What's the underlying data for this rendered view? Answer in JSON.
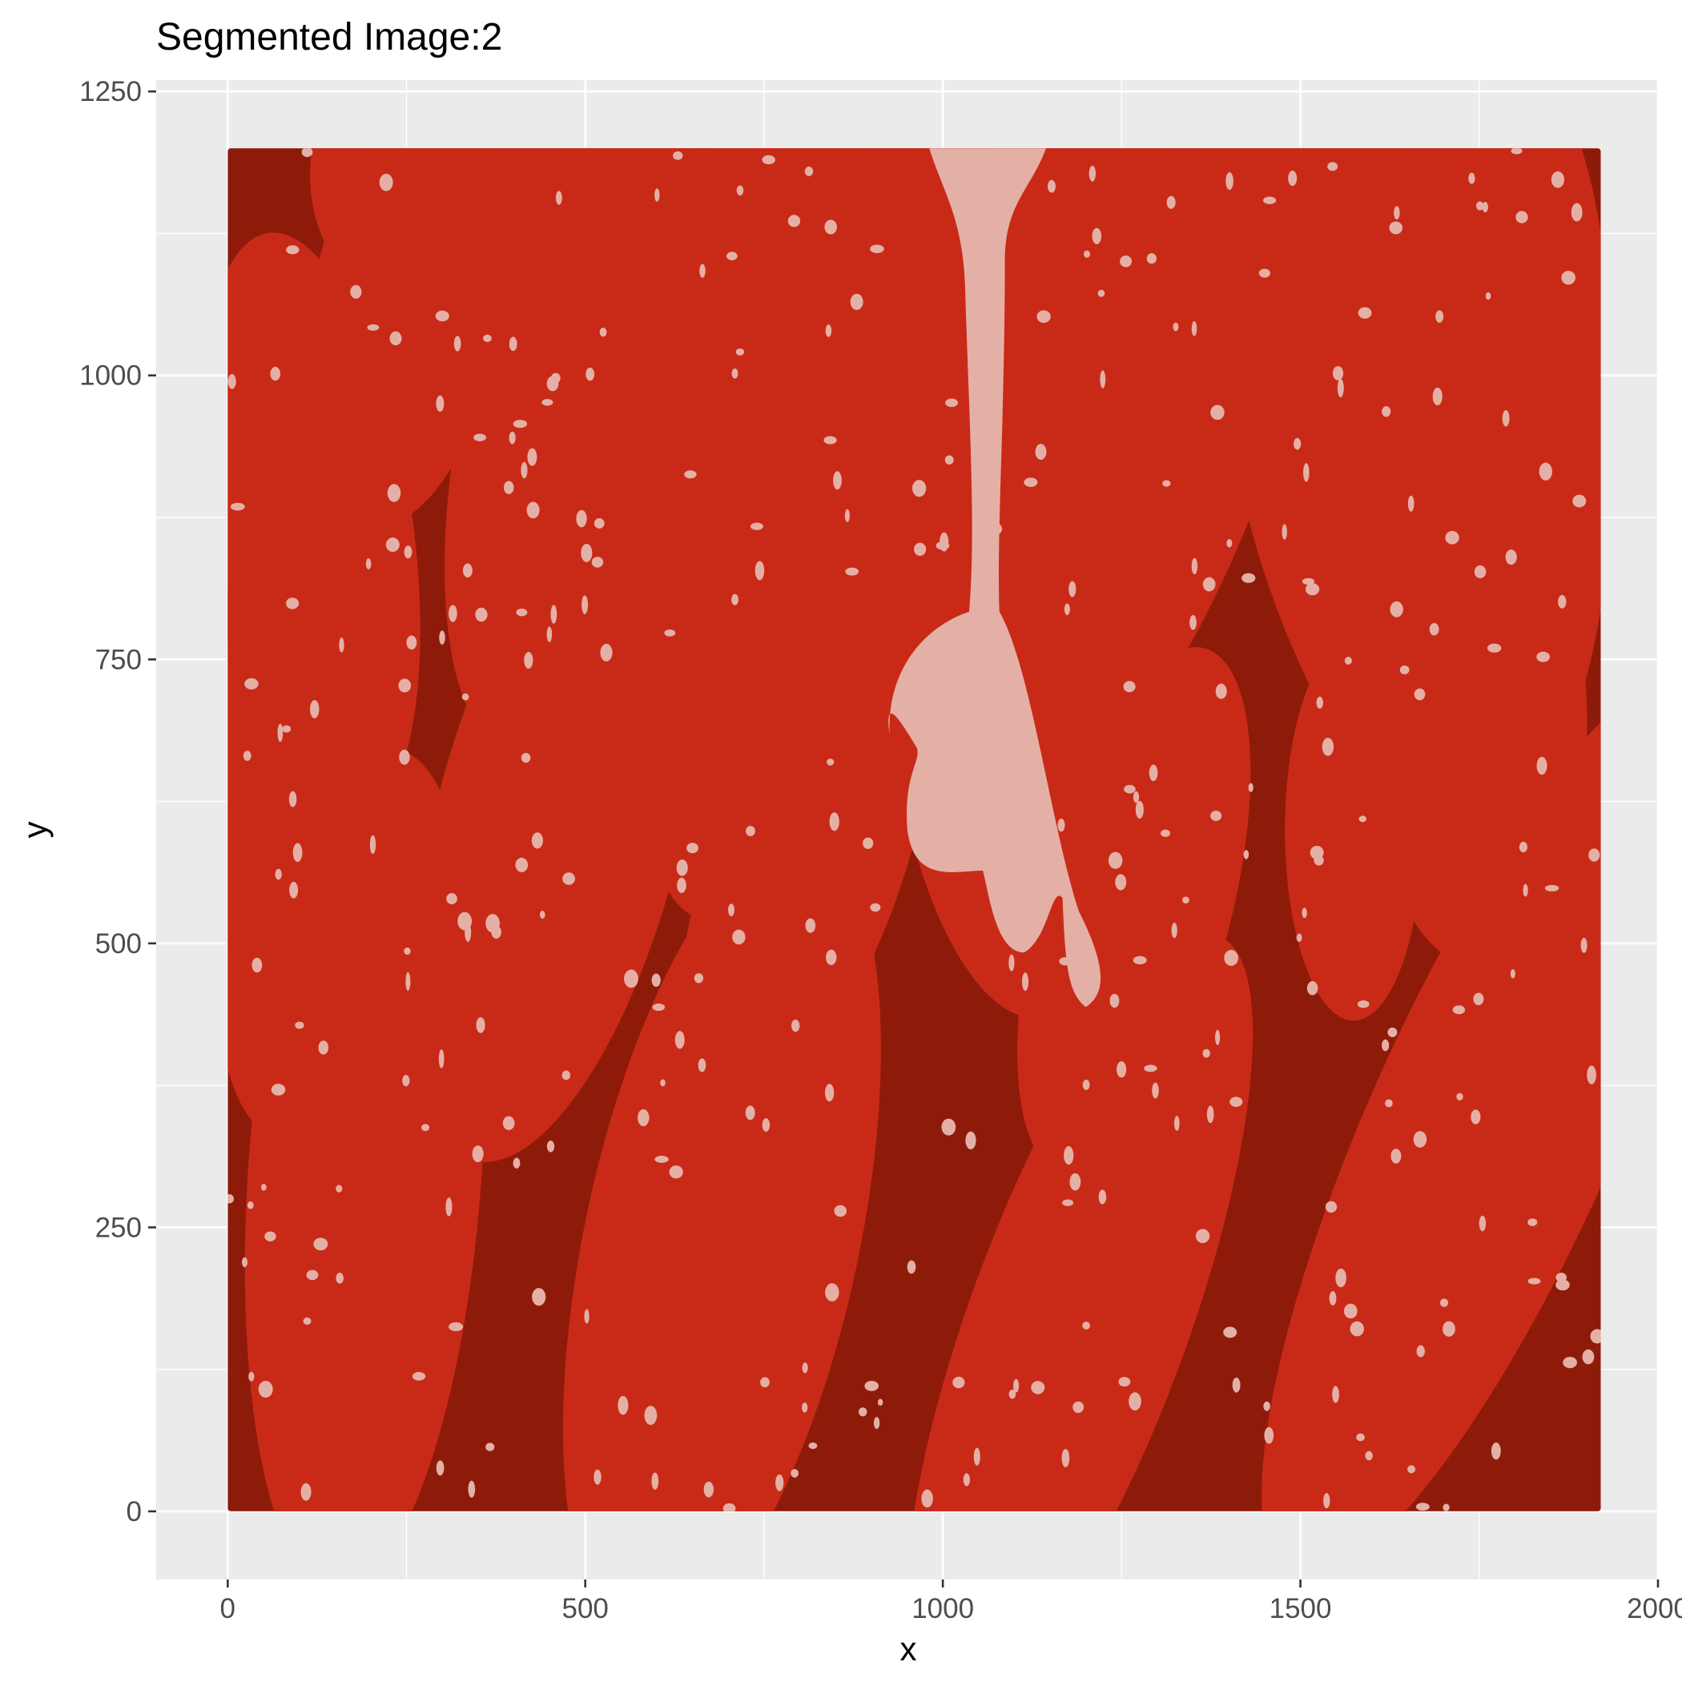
{
  "chart_data": {
    "type": "heatmap",
    "title": "Segmented Image:2",
    "xlabel": "x",
    "ylabel": "y",
    "xlim": [
      -100,
      2000
    ],
    "ylim": [
      -60,
      1260
    ],
    "x_ticks": [
      0,
      500,
      1000,
      1500,
      2000
    ],
    "y_ticks": [
      0,
      250,
      500,
      750,
      1000,
      1250
    ],
    "x_tick_labels": [
      "0",
      "500",
      "1000",
      "1500",
      "2000"
    ],
    "y_tick_labels": [
      "0",
      "250",
      "500",
      "750",
      "1000",
      "1250"
    ],
    "image_extent": {
      "x": [
        0,
        1920
      ],
      "y": [
        0,
        1200
      ]
    },
    "clusters": [
      {
        "color": "#8e1b0a"
      },
      {
        "color": "#c92a18"
      },
      {
        "color": "#e4b0a6"
      }
    ],
    "grid": true,
    "panel_background": "#ebebeb",
    "gridline_color": "#ffffff"
  }
}
